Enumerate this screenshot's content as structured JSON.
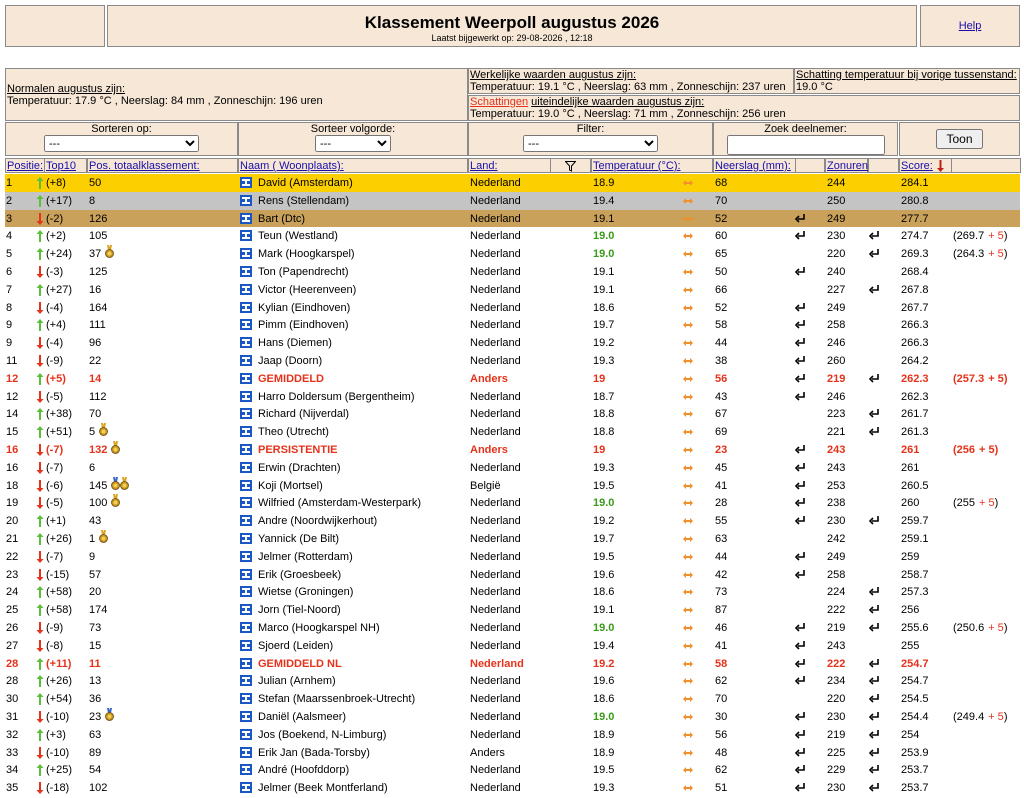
{
  "header": {
    "title": "Klassement Weerpoll augustus 2026",
    "updated": "Laatst bijgewerkt op: 29-08-2026 , 12:18",
    "help": "Help"
  },
  "info": {
    "normals_title": "Normalen augustus zijn:",
    "normals_text": "Temperatuur: 17.9 °C , Neerslag: 84 mm , Zonneschijn: 196 uren",
    "actual_title": "Werkelijke waarden augustus zijn:",
    "actual_text": "Temperatuur: 19.1 °C , Neerslag: 63 mm , Zonneschijn: 237 uren",
    "previous_title": "Schatting temperatuur bij vorige tussenstand:",
    "previous_text": "19.0 °C",
    "estimates_highlight": "Schattingen",
    "estimates_title": "uiteindelijke waarden augustus zijn:",
    "estimates_text": "Temperatuur: 19.0 °C , Neerslag: 71 mm , Zonneschijn: 256 uren"
  },
  "controls": {
    "sort_label": "Sorteren op:",
    "sort_value": "---",
    "order_label": "Sorteer volgorde:",
    "order_value": "---",
    "filter_label": "Filter:",
    "filter_value": "---",
    "search_label": "Zoek deelnemer:",
    "button": "Toon"
  },
  "columns": {
    "position": "Positie:",
    "top10": "Top10",
    "total": "Pos. totaalklassement:",
    "name": "Naam ( Woonplaats):",
    "country": "Land:",
    "temperature": "Temperatuur (°C):",
    "rain": "Neerslag (mm):",
    "sun": "Zonuren:",
    "score": "Score:"
  },
  "rows": [
    {
      "pos": "1",
      "dir": "up",
      "change": "(+8)",
      "total": "50",
      "name": "David (Amsterdam)",
      "country": "Nederland",
      "temp": "18.9",
      "rain": "68",
      "sun": "244",
      "score": "284.1",
      "style": "gold"
    },
    {
      "pos": "2",
      "dir": "up",
      "change": "(+17)",
      "total": "8",
      "name": "Rens (Stellendam)",
      "country": "Nederland",
      "temp": "19.4",
      "rain": "70",
      "sun": "250",
      "score": "280.8",
      "style": "silver"
    },
    {
      "pos": "3",
      "dir": "down",
      "change": "(-2)",
      "total": "126",
      "name": "Bart (Dtc)",
      "country": "Nederland",
      "temp": "19.1",
      "rain": "52",
      "rain_icon": true,
      "sun": "249",
      "score": "277.7",
      "style": "bronze"
    },
    {
      "pos": "4",
      "dir": "up",
      "change": "(+2)",
      "total": "105",
      "name": "Teun (Westland)",
      "country": "Nederland",
      "temp": "19.0",
      "temp_best": true,
      "rain": "60",
      "rain_icon": true,
      "sun": "230",
      "sun_icon": true,
      "score": "274.7",
      "bonus": [
        "(269.7",
        "+ 5",
        ")"
      ]
    },
    {
      "pos": "5",
      "dir": "up",
      "change": "(+24)",
      "total": "37",
      "medals": [
        "gold"
      ],
      "name": "Mark (Hoogkarspel)",
      "country": "Nederland",
      "temp": "19.0",
      "temp_best": true,
      "rain": "65",
      "sun": "220",
      "sun_icon": true,
      "score": "269.3",
      "bonus": [
        "(264.3",
        "+ 5",
        ")"
      ]
    },
    {
      "pos": "6",
      "dir": "down",
      "change": "(-3)",
      "total": "125",
      "name": "Ton (Papendrecht)",
      "country": "Nederland",
      "temp": "19.1",
      "rain": "50",
      "rain_icon": true,
      "sun": "240",
      "score": "268.4"
    },
    {
      "pos": "7",
      "dir": "up",
      "change": "(+27)",
      "total": "16",
      "name": "Victor (Heerenveen)",
      "country": "Nederland",
      "temp": "19.1",
      "rain": "66",
      "sun": "227",
      "sun_icon": true,
      "score": "267.8"
    },
    {
      "pos": "8",
      "dir": "down",
      "change": "(-4)",
      "total": "164",
      "name": "Kylian (Eindhoven)",
      "country": "Nederland",
      "temp": "18.6",
      "rain": "52",
      "rain_icon": true,
      "sun": "249",
      "score": "267.7"
    },
    {
      "pos": "9",
      "dir": "up",
      "change": "(+4)",
      "total": "111",
      "name": "Pimm (Eindhoven)",
      "country": "Nederland",
      "temp": "19.7",
      "rain": "58",
      "rain_icon": true,
      "sun": "258",
      "score": "266.3"
    },
    {
      "pos": "9",
      "dir": "down",
      "change": "(-4)",
      "total": "96",
      "name": "Hans (Diemen)",
      "country": "Nederland",
      "temp": "19.2",
      "rain": "44",
      "rain_icon": true,
      "sun": "246",
      "score": "266.3"
    },
    {
      "pos": "11",
      "dir": "down",
      "change": "(-9)",
      "total": "22",
      "name": "Jaap (Doorn)",
      "country": "Nederland",
      "temp": "19.3",
      "rain": "38",
      "rain_icon": true,
      "sun": "260",
      "score": "264.2"
    },
    {
      "pos": "12",
      "dir": "up",
      "change": "(+5)",
      "total": "14",
      "name": "GEMIDDELD",
      "country": "Anders",
      "temp": "19",
      "rain": "56",
      "rain_icon": true,
      "sun": "219",
      "sun_icon": true,
      "score": "262.3",
      "bonus": [
        "(257.3",
        "+ 5",
        ")"
      ],
      "style": "special"
    },
    {
      "pos": "12",
      "dir": "down",
      "change": "(-5)",
      "total": "112",
      "name": "Harro Doldersum (Bergentheim)",
      "country": "Nederland",
      "temp": "18.7",
      "rain": "43",
      "rain_icon": true,
      "sun": "246",
      "score": "262.3"
    },
    {
      "pos": "14",
      "dir": "up",
      "change": "(+38)",
      "total": "70",
      "name": "Richard (Nijverdal)",
      "country": "Nederland",
      "temp": "18.8",
      "rain": "67",
      "sun": "223",
      "sun_icon": true,
      "score": "261.7"
    },
    {
      "pos": "15",
      "dir": "up",
      "change": "(+51)",
      "total": "5",
      "medals": [
        "gold"
      ],
      "name": "Theo (Utrecht)",
      "country": "Nederland",
      "temp": "18.8",
      "rain": "69",
      "sun": "221",
      "sun_icon": true,
      "score": "261.3"
    },
    {
      "pos": "16",
      "dir": "down",
      "change": "(-7)",
      "total": "132",
      "medals": [
        "gold"
      ],
      "name": "PERSISTENTIE",
      "country": "Anders",
      "temp": "19",
      "rain": "23",
      "rain_icon": true,
      "sun": "243",
      "score": "261",
      "bonus": [
        "(256",
        "+ 5",
        ")"
      ],
      "style": "special"
    },
    {
      "pos": "16",
      "dir": "down",
      "change": "(-7)",
      "total": "6",
      "name": "Erwin (Drachten)",
      "country": "Nederland",
      "temp": "19.3",
      "rain": "45",
      "rain_icon": true,
      "sun": "243",
      "score": "261"
    },
    {
      "pos": "18",
      "dir": "down",
      "change": "(-6)",
      "total": "145",
      "medals": [
        "blue",
        "gold"
      ],
      "name": "Koji (Mortsel)",
      "country": "België",
      "temp": "19.5",
      "rain": "41",
      "rain_icon": true,
      "sun": "253",
      "score": "260.5"
    },
    {
      "pos": "19",
      "dir": "down",
      "change": "(-5)",
      "total": "100",
      "medals": [
        "gold"
      ],
      "name": "Wilfried (Amsterdam-Westerpark)",
      "country": "Nederland",
      "temp": "19.0",
      "temp_best": true,
      "rain": "28",
      "rain_icon": true,
      "sun": "238",
      "score": "260",
      "bonus": [
        "(255",
        "+ 5",
        ")"
      ]
    },
    {
      "pos": "20",
      "dir": "up",
      "change": "(+1)",
      "total": "43",
      "name": "Andre (Noordwijkerhout)",
      "country": "Nederland",
      "temp": "19.2",
      "rain": "55",
      "rain_icon": true,
      "sun": "230",
      "sun_icon": true,
      "score": "259.7"
    },
    {
      "pos": "21",
      "dir": "up",
      "change": "(+26)",
      "total": "1",
      "medals": [
        "gold"
      ],
      "name": "Yannick (De Bilt)",
      "country": "Nederland",
      "temp": "19.7",
      "rain": "63",
      "sun": "242",
      "score": "259.1"
    },
    {
      "pos": "22",
      "dir": "down",
      "change": "(-7)",
      "total": "9",
      "name": "Jelmer (Rotterdam)",
      "country": "Nederland",
      "temp": "19.5",
      "rain": "44",
      "rain_icon": true,
      "sun": "249",
      "score": "259"
    },
    {
      "pos": "23",
      "dir": "down",
      "change": "(-15)",
      "total": "57",
      "name": "Erik (Groesbeek)",
      "country": "Nederland",
      "temp": "19.6",
      "rain": "42",
      "rain_icon": true,
      "sun": "258",
      "score": "258.7"
    },
    {
      "pos": "24",
      "dir": "up",
      "change": "(+58)",
      "total": "20",
      "name": "Wietse (Groningen)",
      "country": "Nederland",
      "temp": "18.6",
      "rain": "73",
      "sun": "224",
      "sun_icon": true,
      "score": "257.3"
    },
    {
      "pos": "25",
      "dir": "up",
      "change": "(+58)",
      "total": "174",
      "name": "Jorn (Tiel-Noord)",
      "country": "Nederland",
      "temp": "19.1",
      "rain": "87",
      "sun": "222",
      "sun_icon": true,
      "score": "256"
    },
    {
      "pos": "26",
      "dir": "down",
      "change": "(-9)",
      "total": "73",
      "name": "Marco (Hoogkarspel NH)",
      "country": "Nederland",
      "temp": "19.0",
      "temp_best": true,
      "rain": "46",
      "rain_icon": true,
      "sun": "219",
      "sun_icon": true,
      "score": "255.6",
      "bonus": [
        "(250.6",
        "+ 5",
        ")"
      ]
    },
    {
      "pos": "27",
      "dir": "down",
      "change": "(-8)",
      "total": "15",
      "name": "Sjoerd (Leiden)",
      "country": "Nederland",
      "temp": "19.4",
      "rain": "41",
      "rain_icon": true,
      "sun": "243",
      "score": "255"
    },
    {
      "pos": "28",
      "dir": "up",
      "change": "(+11)",
      "total": "11",
      "name": "GEMIDDELD NL",
      "country": "Nederland",
      "temp": "19.2",
      "rain": "58",
      "rain_icon": true,
      "sun": "222",
      "sun_icon": true,
      "score": "254.7",
      "style": "special"
    },
    {
      "pos": "28",
      "dir": "up",
      "change": "(+26)",
      "total": "13",
      "name": "Julian (Arnhem)",
      "country": "Nederland",
      "temp": "19.6",
      "rain": "62",
      "rain_icon": true,
      "sun": "234",
      "sun_icon": true,
      "score": "254.7"
    },
    {
      "pos": "30",
      "dir": "up",
      "change": "(+54)",
      "total": "36",
      "name": "Stefan (Maarssenbroek-Utrecht)",
      "country": "Nederland",
      "temp": "18.6",
      "rain": "70",
      "sun": "220",
      "sun_icon": true,
      "score": "254.5"
    },
    {
      "pos": "31",
      "dir": "down",
      "change": "(-10)",
      "total": "23",
      "medals": [
        "blue"
      ],
      "name": "Daniël (Aalsmeer)",
      "country": "Nederland",
      "temp": "19.0",
      "temp_best": true,
      "rain": "30",
      "rain_icon": true,
      "sun": "230",
      "sun_icon": true,
      "score": "254.4",
      "bonus": [
        "(249.4",
        "+ 5",
        ")"
      ]
    },
    {
      "pos": "32",
      "dir": "up",
      "change": "(+3)",
      "total": "63",
      "name": "Jos (Boekend, N-Limburg)",
      "country": "Nederland",
      "temp": "18.9",
      "rain": "56",
      "rain_icon": true,
      "sun": "219",
      "sun_icon": true,
      "score": "254"
    },
    {
      "pos": "33",
      "dir": "down",
      "change": "(-10)",
      "total": "89",
      "name": "Erik Jan (Bada-Torsby)",
      "country": "Anders",
      "temp": "18.9",
      "rain": "48",
      "rain_icon": true,
      "sun": "225",
      "sun_icon": true,
      "score": "253.9"
    },
    {
      "pos": "34",
      "dir": "up",
      "change": "(+25)",
      "total": "54",
      "name": "André (Hoofddorp)",
      "country": "Nederland",
      "temp": "19.5",
      "rain": "62",
      "rain_icon": true,
      "sun": "229",
      "sun_icon": true,
      "score": "253.7"
    },
    {
      "pos": "35",
      "dir": "down",
      "change": "(-18)",
      "total": "102",
      "name": "Jelmer (Beek Montferland)",
      "country": "Nederland",
      "temp": "19.3",
      "rain": "51",
      "rain_icon": true,
      "sun": "230",
      "sun_icon": true,
      "score": "253.7"
    }
  ]
}
